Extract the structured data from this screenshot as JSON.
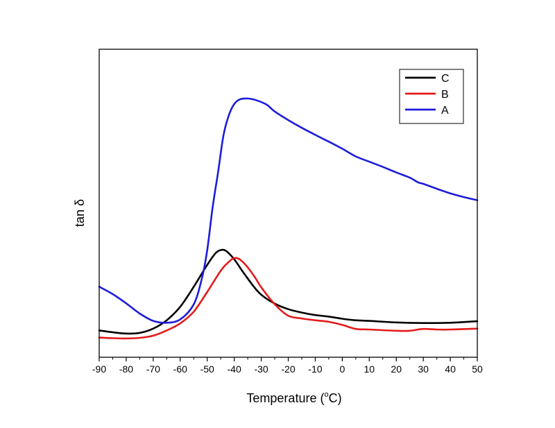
{
  "chart_data": {
    "type": "line",
    "title": "",
    "xlabel": "Temperature (",
    "xlabel_sup": "o",
    "xlabel_unit": "C)",
    "ylabel": "tan δ",
    "xlim": [
      -90,
      50
    ],
    "ylim": [
      0,
      1
    ],
    "x_ticks": [
      -90,
      -80,
      -70,
      -60,
      -50,
      -40,
      -30,
      -20,
      -10,
      0,
      10,
      20,
      30,
      40,
      50
    ],
    "y_tick_labels_shown": false,
    "grid": false,
    "legend_position": "top-right",
    "series": [
      {
        "name": "C",
        "color": "#000000",
        "points": [
          [
            -90,
            0.087
          ],
          [
            -85,
            0.081
          ],
          [
            -80,
            0.077
          ],
          [
            -75,
            0.079
          ],
          [
            -70,
            0.093
          ],
          [
            -65,
            0.12
          ],
          [
            -60,
            0.164
          ],
          [
            -55,
            0.229
          ],
          [
            -50,
            0.3
          ],
          [
            -47,
            0.337
          ],
          [
            -45,
            0.348
          ],
          [
            -43,
            0.345
          ],
          [
            -40,
            0.318
          ],
          [
            -37,
            0.28
          ],
          [
            -33,
            0.232
          ],
          [
            -30,
            0.203
          ],
          [
            -25,
            0.174
          ],
          [
            -20,
            0.156
          ],
          [
            -15,
            0.145
          ],
          [
            -10,
            0.137
          ],
          [
            -5,
            0.132
          ],
          [
            0,
            0.125
          ],
          [
            5,
            0.12
          ],
          [
            10,
            0.118
          ],
          [
            20,
            0.113
          ],
          [
            30,
            0.111
          ],
          [
            40,
            0.112
          ],
          [
            50,
            0.117
          ]
        ]
      },
      {
        "name": "B",
        "color": "#e41a1a",
        "points": [
          [
            -90,
            0.064
          ],
          [
            -85,
            0.062
          ],
          [
            -80,
            0.061
          ],
          [
            -75,
            0.063
          ],
          [
            -70,
            0.07
          ],
          [
            -65,
            0.087
          ],
          [
            -60,
            0.11
          ],
          [
            -55,
            0.148
          ],
          [
            -50,
            0.212
          ],
          [
            -45,
            0.281
          ],
          [
            -42,
            0.31
          ],
          [
            -40,
            0.322
          ],
          [
            -38,
            0.318
          ],
          [
            -35,
            0.292
          ],
          [
            -32,
            0.255
          ],
          [
            -30,
            0.227
          ],
          [
            -25,
            0.172
          ],
          [
            -20,
            0.135
          ],
          [
            -15,
            0.126
          ],
          [
            -10,
            0.12
          ],
          [
            -5,
            0.115
          ],
          [
            0,
            0.105
          ],
          [
            5,
            0.092
          ],
          [
            10,
            0.09
          ],
          [
            20,
            0.086
          ],
          [
            25,
            0.086
          ],
          [
            30,
            0.092
          ],
          [
            35,
            0.09
          ],
          [
            40,
            0.09
          ],
          [
            50,
            0.093
          ]
        ]
      },
      {
        "name": "A",
        "color": "#1c1cdc",
        "points": [
          [
            -90,
            0.229
          ],
          [
            -85,
            0.205
          ],
          [
            -80,
            0.175
          ],
          [
            -75,
            0.142
          ],
          [
            -70,
            0.118
          ],
          [
            -65,
            0.112
          ],
          [
            -60,
            0.123
          ],
          [
            -55,
            0.172
          ],
          [
            -52,
            0.255
          ],
          [
            -50,
            0.348
          ],
          [
            -48,
            0.487
          ],
          [
            -46,
            0.6
          ],
          [
            -44,
            0.72
          ],
          [
            -42,
            0.786
          ],
          [
            -40,
            0.822
          ],
          [
            -38,
            0.837
          ],
          [
            -35,
            0.84
          ],
          [
            -32,
            0.835
          ],
          [
            -28,
            0.82
          ],
          [
            -25,
            0.798
          ],
          [
            -20,
            0.77
          ],
          [
            -15,
            0.745
          ],
          [
            -10,
            0.722
          ],
          [
            -5,
            0.7
          ],
          [
            0,
            0.677
          ],
          [
            5,
            0.652
          ],
          [
            10,
            0.635
          ],
          [
            15,
            0.618
          ],
          [
            20,
            0.6
          ],
          [
            25,
            0.583
          ],
          [
            28,
            0.568
          ],
          [
            30,
            0.563
          ],
          [
            35,
            0.547
          ],
          [
            40,
            0.532
          ],
          [
            45,
            0.52
          ],
          [
            50,
            0.51
          ]
        ]
      }
    ]
  }
}
